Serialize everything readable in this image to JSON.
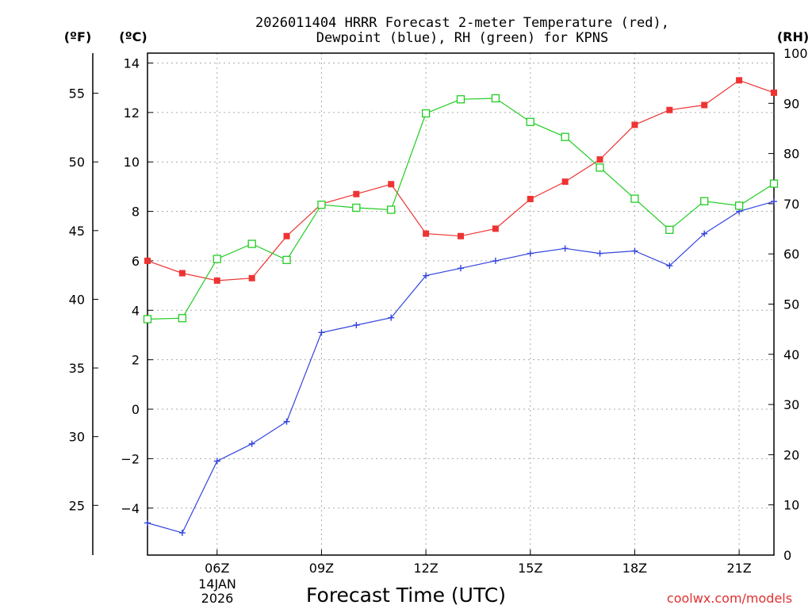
{
  "chart_data": {
    "type": "line",
    "title_line1": "2026011404 HRRR Forecast 2-meter Temperature (red),",
    "title_line2": "Dewpoint (blue), RH (green) for KPNS",
    "left_outer_unit": "(ºF)",
    "left_inner_unit": "(ºC)",
    "right_unit": "(RH)",
    "xlabel": "Forecast Time (UTC)",
    "credit": "coolwx.com/models",
    "date_label_line1": "14JAN",
    "date_label_line2": "2026",
    "x_hours": [
      4,
      5,
      6,
      7,
      8,
      9,
      10,
      11,
      12,
      13,
      14,
      15,
      16,
      17,
      18,
      19,
      20,
      21,
      22
    ],
    "xlim": [
      4,
      22
    ],
    "x_ticks": [
      {
        "hour": 6,
        "label": "06Z"
      },
      {
        "hour": 9,
        "label": "09Z"
      },
      {
        "hour": 12,
        "label": "12Z"
      },
      {
        "hour": 15,
        "label": "15Z"
      },
      {
        "hour": 18,
        "label": "18Z"
      },
      {
        "hour": 21,
        "label": "21Z"
      }
    ],
    "celsius_axis": {
      "ylim": [
        -5.9,
        14.4
      ],
      "ticks": [
        {
          "v": -4,
          "label": "−4"
        },
        {
          "v": -2,
          "label": "−2"
        },
        {
          "v": 0,
          "label": "0"
        },
        {
          "v": 2,
          "label": "2"
        },
        {
          "v": 4,
          "label": "4"
        },
        {
          "v": 6,
          "label": "6"
        },
        {
          "v": 8,
          "label": "8"
        },
        {
          "v": 10,
          "label": "10"
        },
        {
          "v": 12,
          "label": "12"
        },
        {
          "v": 14,
          "label": "14"
        }
      ]
    },
    "fahrenheit_axis": {
      "ticks": [
        {
          "v": 25,
          "label": "25"
        },
        {
          "v": 30,
          "label": "30"
        },
        {
          "v": 35,
          "label": "35"
        },
        {
          "v": 40,
          "label": "40"
        },
        {
          "v": 45,
          "label": "45"
        },
        {
          "v": 50,
          "label": "50"
        },
        {
          "v": 55,
          "label": "55"
        }
      ]
    },
    "rh_axis": {
      "ylim": [
        0,
        100
      ],
      "ticks": [
        {
          "v": 0,
          "label": "0"
        },
        {
          "v": 10,
          "label": "10"
        },
        {
          "v": 20,
          "label": "20"
        },
        {
          "v": 30,
          "label": "30"
        },
        {
          "v": 40,
          "label": "40"
        },
        {
          "v": 50,
          "label": "50"
        },
        {
          "v": 60,
          "label": "60"
        },
        {
          "v": 70,
          "label": "70"
        },
        {
          "v": 80,
          "label": "80"
        },
        {
          "v": 90,
          "label": "90"
        },
        {
          "v": 100,
          "label": "100"
        }
      ]
    },
    "series": [
      {
        "name": "Temperature",
        "axis": "celsius",
        "color": "#ee3333",
        "marker": "filled-square",
        "values": [
          6.0,
          5.5,
          5.2,
          5.3,
          7.0,
          8.3,
          8.7,
          9.1,
          7.1,
          7.0,
          7.3,
          8.5,
          9.2,
          10.1,
          11.5,
          12.1,
          12.3,
          13.3,
          12.8
        ]
      },
      {
        "name": "Dewpoint",
        "axis": "celsius",
        "color": "#3344dd",
        "marker": "plus",
        "values": [
          -4.6,
          -5.0,
          -2.1,
          -1.4,
          -0.5,
          3.1,
          3.4,
          3.7,
          5.4,
          5.7,
          6.0,
          6.3,
          6.5,
          6.3,
          6.4,
          5.8,
          7.1,
          8.0,
          8.4
        ]
      },
      {
        "name": "RH",
        "axis": "rh",
        "color": "#22cc22",
        "marker": "open-square",
        "values": [
          47.0,
          47.2,
          59.0,
          62.0,
          58.8,
          69.8,
          69.2,
          68.8,
          88.0,
          90.8,
          91.0,
          86.3,
          83.3,
          77.2,
          71.0,
          64.8,
          70.5,
          69.6,
          74.0
        ]
      }
    ]
  }
}
